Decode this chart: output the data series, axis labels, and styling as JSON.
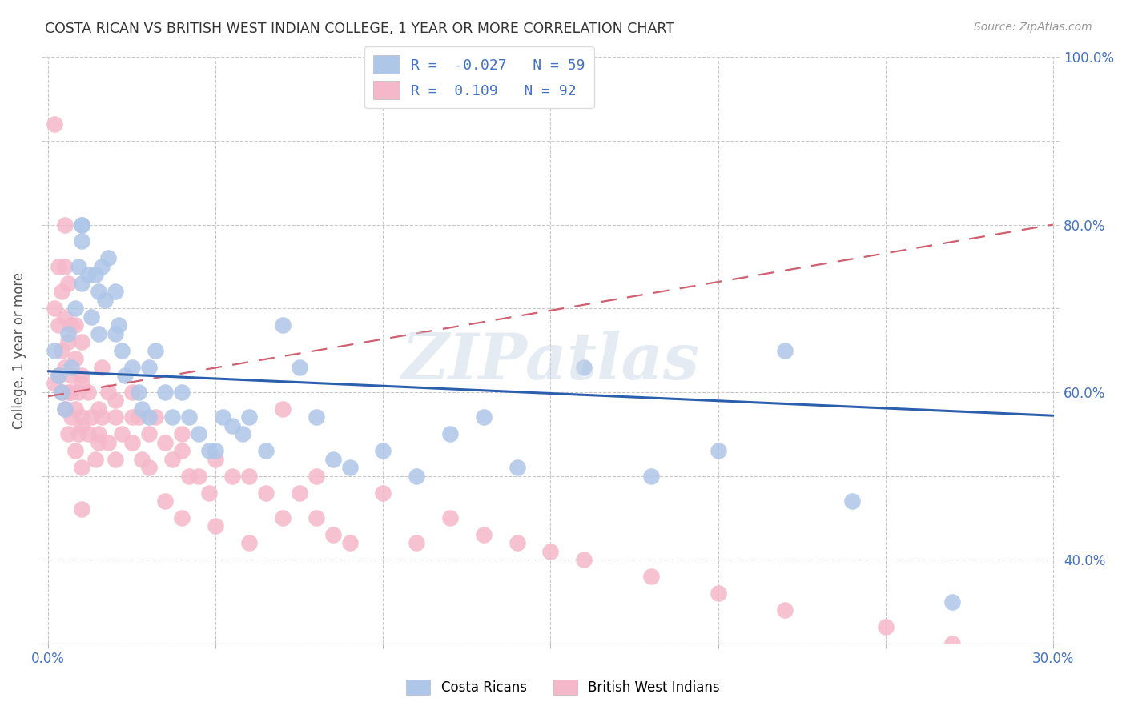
{
  "title": "COSTA RICAN VS BRITISH WEST INDIAN COLLEGE, 1 YEAR OR MORE CORRELATION CHART",
  "source": "Source: ZipAtlas.com",
  "ylabel": "College, 1 year or more",
  "xmin": 0.0,
  "xmax": 0.3,
  "ymin": 0.3,
  "ymax": 1.0,
  "legend_labels": [
    "Costa Ricans",
    "British West Indians"
  ],
  "r_blue": -0.027,
  "n_blue": 59,
  "r_pink": 0.109,
  "n_pink": 92,
  "color_blue": "#aec6e8",
  "color_pink": "#f5b8cb",
  "trendline_blue_color": "#2b5fad",
  "trendline_pink_color": "#d06070",
  "watermark": "ZIPatlas",
  "blue_trendline_y0": 0.625,
  "blue_trendline_y1": 0.572,
  "pink_trendline_y0": 0.595,
  "pink_trendline_y1": 0.8,
  "blue_x": [
    0.002,
    0.003,
    0.004,
    0.005,
    0.006,
    0.007,
    0.008,
    0.009,
    0.01,
    0.01,
    0.01,
    0.01,
    0.012,
    0.013,
    0.014,
    0.015,
    0.015,
    0.016,
    0.017,
    0.018,
    0.02,
    0.02,
    0.021,
    0.022,
    0.023,
    0.025,
    0.027,
    0.028,
    0.03,
    0.03,
    0.032,
    0.035,
    0.037,
    0.04,
    0.042,
    0.045,
    0.048,
    0.05,
    0.052,
    0.055,
    0.058,
    0.06,
    0.065,
    0.07,
    0.075,
    0.08,
    0.085,
    0.09,
    0.1,
    0.11,
    0.12,
    0.13,
    0.14,
    0.16,
    0.18,
    0.2,
    0.22,
    0.24,
    0.27
  ],
  "blue_y": [
    0.65,
    0.62,
    0.6,
    0.58,
    0.67,
    0.63,
    0.7,
    0.75,
    0.78,
    0.73,
    0.8,
    0.8,
    0.74,
    0.69,
    0.74,
    0.67,
    0.72,
    0.75,
    0.71,
    0.76,
    0.67,
    0.72,
    0.68,
    0.65,
    0.62,
    0.63,
    0.6,
    0.58,
    0.63,
    0.57,
    0.65,
    0.6,
    0.57,
    0.6,
    0.57,
    0.55,
    0.53,
    0.53,
    0.57,
    0.56,
    0.55,
    0.57,
    0.53,
    0.68,
    0.63,
    0.57,
    0.52,
    0.51,
    0.53,
    0.5,
    0.55,
    0.57,
    0.51,
    0.63,
    0.5,
    0.53,
    0.65,
    0.47,
    0.35
  ],
  "pink_x": [
    0.002,
    0.002,
    0.002,
    0.003,
    0.003,
    0.003,
    0.004,
    0.004,
    0.004,
    0.005,
    0.005,
    0.005,
    0.005,
    0.006,
    0.006,
    0.006,
    0.006,
    0.007,
    0.007,
    0.007,
    0.008,
    0.008,
    0.008,
    0.009,
    0.009,
    0.01,
    0.01,
    0.01,
    0.01,
    0.01,
    0.012,
    0.012,
    0.013,
    0.014,
    0.015,
    0.015,
    0.016,
    0.016,
    0.018,
    0.018,
    0.02,
    0.02,
    0.022,
    0.025,
    0.025,
    0.027,
    0.028,
    0.03,
    0.032,
    0.035,
    0.037,
    0.04,
    0.042,
    0.045,
    0.048,
    0.05,
    0.055,
    0.06,
    0.065,
    0.07,
    0.075,
    0.08,
    0.085,
    0.09,
    0.1,
    0.11,
    0.12,
    0.13,
    0.14,
    0.15,
    0.16,
    0.18,
    0.2,
    0.22,
    0.25,
    0.27,
    0.05,
    0.06,
    0.07,
    0.08,
    0.04,
    0.04,
    0.035,
    0.03,
    0.025,
    0.02,
    0.015,
    0.01,
    0.01,
    0.008,
    0.007,
    0.005
  ],
  "pink_y": [
    0.92,
    0.7,
    0.61,
    0.75,
    0.68,
    0.62,
    0.72,
    0.65,
    0.6,
    0.75,
    0.69,
    0.63,
    0.58,
    0.73,
    0.66,
    0.6,
    0.55,
    0.68,
    0.62,
    0.57,
    0.64,
    0.58,
    0.53,
    0.6,
    0.55,
    0.66,
    0.61,
    0.56,
    0.51,
    0.46,
    0.6,
    0.55,
    0.57,
    0.52,
    0.58,
    0.54,
    0.63,
    0.57,
    0.6,
    0.54,
    0.57,
    0.52,
    0.55,
    0.6,
    0.54,
    0.57,
    0.52,
    0.55,
    0.57,
    0.54,
    0.52,
    0.53,
    0.5,
    0.5,
    0.48,
    0.52,
    0.5,
    0.5,
    0.48,
    0.45,
    0.48,
    0.45,
    0.43,
    0.42,
    0.48,
    0.42,
    0.45,
    0.43,
    0.42,
    0.41,
    0.4,
    0.38,
    0.36,
    0.34,
    0.32,
    0.3,
    0.44,
    0.42,
    0.58,
    0.5,
    0.55,
    0.45,
    0.47,
    0.51,
    0.57,
    0.59,
    0.55,
    0.57,
    0.62,
    0.68,
    0.6,
    0.8
  ]
}
